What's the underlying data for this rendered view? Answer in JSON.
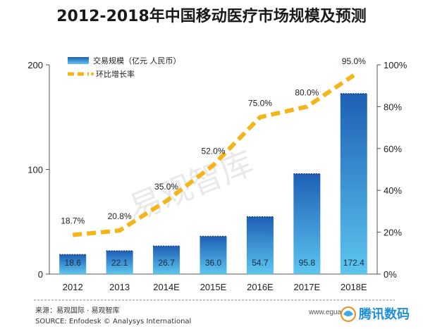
{
  "chart_data": {
    "type": "bar+line",
    "title": "2012-2018年中国移动医疗市场规模及预测",
    "categories": [
      "2012",
      "2013",
      "2014E",
      "2015E",
      "2016E",
      "2017E",
      "2018E"
    ],
    "series": [
      {
        "name": "交易规模（亿元 人民币）",
        "type": "bar",
        "axis": "left",
        "values": [
          18.6,
          22.1,
          26.7,
          36.0,
          54.7,
          95.8,
          172.4
        ],
        "labels": [
          "18.6",
          "22.1",
          "26.7",
          "36.0",
          "54.7",
          "95.8",
          "172.4"
        ]
      },
      {
        "name": "环比增长率",
        "type": "line",
        "axis": "right",
        "values": [
          18.7,
          20.8,
          35.0,
          52.0,
          75.0,
          80.0,
          95.0
        ],
        "labels": [
          "18.7%",
          "20.8%",
          "35.0%",
          "52.0%",
          "75.0%",
          "80.0%",
          "95.0%"
        ]
      }
    ],
    "left_axis": {
      "ylim": [
        0,
        200
      ],
      "ticks": [
        0,
        100,
        200
      ],
      "tick_labels": [
        "0",
        "100",
        "200"
      ]
    },
    "right_axis": {
      "ylim": [
        0,
        100
      ],
      "ticks": [
        0,
        20,
        40,
        60,
        80,
        100
      ],
      "tick_labels": [
        "0%",
        "20%",
        "40%",
        "60%",
        "80%",
        "100%"
      ]
    },
    "legend_position": "top-left",
    "watermark": "易观智库",
    "colors": {
      "bar_top": "#1e5fb5",
      "bar_bottom": "#5cc6ef",
      "line": "#f3b51a",
      "axis": "#555555"
    }
  },
  "source": {
    "line1": "来源：易观国际 · 易观智库",
    "line2": "SOURCE: Enfodesk © Analysys International"
  },
  "brand": {
    "site": "www.eguan.cn",
    "logo_text": "腾讯数码"
  }
}
